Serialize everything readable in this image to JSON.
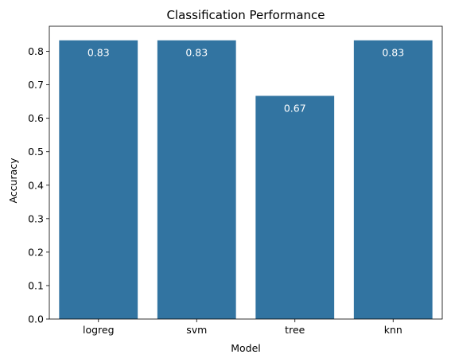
{
  "chart_data": {
    "type": "bar",
    "title": "Classification Performance",
    "xlabel": "Model",
    "ylabel": "Accuracy",
    "categories": [
      "logreg",
      "svm",
      "tree",
      "knn"
    ],
    "values": [
      0.833,
      0.833,
      0.667,
      0.833
    ],
    "data_labels": [
      "0.83",
      "0.83",
      "0.67",
      "0.83"
    ],
    "ylim": [
      0,
      0.875
    ],
    "yticks": [
      0.0,
      0.1,
      0.2,
      0.3,
      0.4,
      0.5,
      0.6,
      0.7,
      0.8
    ],
    "ytick_labels": [
      "0.0",
      "0.1",
      "0.2",
      "0.3",
      "0.4",
      "0.5",
      "0.6",
      "0.7",
      "0.8"
    ],
    "grid": false,
    "colors": {
      "bar": "#3274a1",
      "axes": "#000000",
      "label_text": "#ffffff"
    }
  }
}
